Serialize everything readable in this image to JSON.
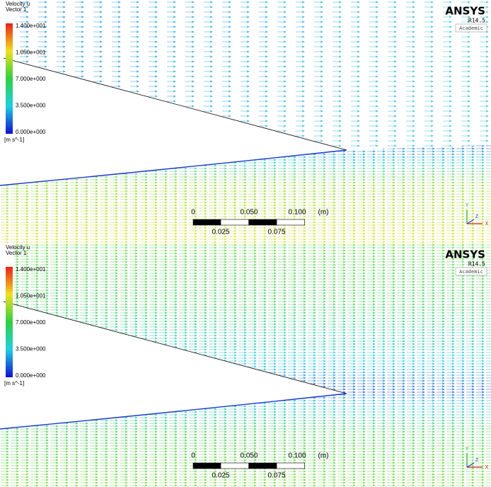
{
  "panels": [
    {
      "legend": {
        "title": "Velocity u",
        "subtitle": "Vector 1",
        "ticks": [
          "1.400e+001",
          "1.050e+001",
          "7.000e+000",
          "3.500e+000",
          "0.000e+000"
        ],
        "unit": "[m s^-1]"
      },
      "logo": {
        "name": "ANSYS",
        "version": "R14.5",
        "license": "Academic"
      },
      "scale": {
        "top_labels": [
          "0",
          "0.050",
          "0.100",
          "(m)"
        ],
        "bottom_labels": [
          "0.025",
          "0.075"
        ]
      },
      "triad": [
        "Y",
        "Z",
        "X"
      ]
    },
    {
      "legend": {
        "title": "Velocity u",
        "subtitle": "Vector 1",
        "ticks": [
          "1.400e+001",
          "1.050e+001",
          "7.000e+000",
          "3.500e+000",
          "0.000e+000"
        ],
        "unit": "[m s^-1]"
      },
      "logo": {
        "name": "ANSYS",
        "version": "R14.5",
        "license": "Academic"
      },
      "scale": {
        "top_labels": [
          "0",
          "0.050",
          "0.100",
          "(m)"
        ],
        "bottom_labels": [
          "0.025",
          "0.075"
        ]
      },
      "triad": [
        "Y",
        "Z",
        "X"
      ]
    }
  ]
}
